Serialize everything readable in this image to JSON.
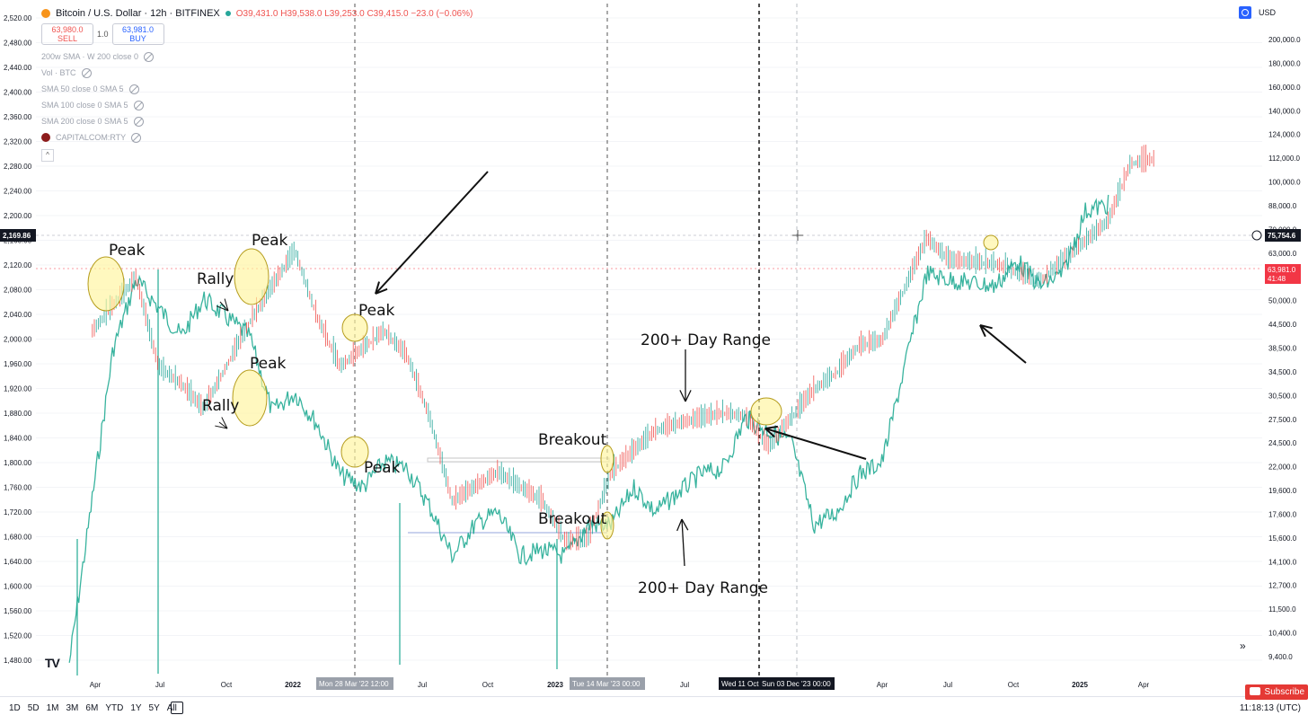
{
  "header": {
    "title": "Bitcoin / U.S. Dollar · 12h · BITFINEX",
    "ohlc": "O39,431.0 H39,538.0 L39,253.0 C39,415.0 −23.0 (−0.06%)",
    "sell_price": "63,980.0",
    "sell_label": "SELL",
    "quantity": "1.0",
    "buy_price": "63,981.0",
    "buy_label": "BUY",
    "currency": "USD"
  },
  "indicators": [
    "200w SMA · W 200 close 0",
    "Vol · BTC",
    "SMA 50 close 0 SMA 5",
    "SMA 100 close 0 SMA 5",
    "SMA 200 close 0 SMA 5",
    "CAPITALCOM:RTY"
  ],
  "range_buttons": [
    "1D",
    "5D",
    "1M",
    "3M",
    "6M",
    "YTD",
    "1Y",
    "5Y",
    "All"
  ],
  "time_readout": "11:18:13 (UTC)",
  "subscribe_label": "Subscribe",
  "colors": {
    "btc_candle_up": "#26a69a",
    "btc_candle_down": "#ef5350",
    "rty_line": "#22ab94",
    "highlight": "#fff59d",
    "price_tag_red": "#f23645",
    "crosshair_tag": "#131722"
  },
  "chart_data": {
    "type": "line",
    "series": [
      {
        "name": "CAPITALCOM:RTY",
        "axis": "left",
        "x": [
          "2021-01",
          "2021-03",
          "2021-04",
          "2021-06",
          "2021-07",
          "2021-09",
          "2021-10",
          "2021-11",
          "2021-12",
          "2022-01",
          "2022-02",
          "2022-03",
          "2022-04",
          "2022-05",
          "2022-06",
          "2022-07",
          "2022-08",
          "2022-09",
          "2022-10",
          "2022-11",
          "2022-12",
          "2023-01",
          "2023-02",
          "2023-03",
          "2023-05",
          "2023-06",
          "2023-07",
          "2023-08",
          "2023-09",
          "2023-10",
          "2023-11",
          "2023-12",
          "2024-01",
          "2024-03",
          "2024-04",
          "2024-06",
          "2024-07",
          "2024-08",
          "2024-09",
          "2024-10",
          "2024-11"
        ],
        "y": [
          1480,
          1980,
          2090,
          2000,
          2060,
          2000,
          1880,
          1910,
          1860,
          1780,
          1760,
          1800,
          1790,
          1730,
          1650,
          1700,
          1720,
          1650,
          1660,
          1650,
          1700,
          1700,
          1760,
          1720,
          1780,
          1790,
          1870,
          1850,
          1830,
          1700,
          1720,
          1780,
          1800,
          2100,
          2090,
          2080,
          2120,
          2080,
          2100,
          2200,
          2210
        ]
      },
      {
        "name": "Bitcoin / U.S. Dollar",
        "axis": "right",
        "x": [
          "2021-02",
          "2021-04",
          "2021-05",
          "2021-06",
          "2021-07",
          "2021-09",
          "2021-11",
          "2021-12",
          "2022-01",
          "2022-03",
          "2022-04",
          "2022-05",
          "2022-06",
          "2022-08",
          "2022-10",
          "2022-11",
          "2022-12",
          "2023-01",
          "2023-03",
          "2023-04",
          "2023-06",
          "2023-07",
          "2023-08",
          "2023-10",
          "2023-11",
          "2023-12",
          "2024-01",
          "2024-03",
          "2024-04",
          "2024-06",
          "2024-08",
          "2024-09",
          "2024-11",
          "2024-12",
          "2025-01"
        ],
        "y": [
          45000,
          58000,
          38000,
          35000,
          31000,
          47000,
          66000,
          48000,
          38000,
          45000,
          40000,
          30000,
          20000,
          23000,
          20000,
          16500,
          16800,
          23000,
          28000,
          29000,
          30500,
          30000,
          26000,
          34000,
          37000,
          42000,
          43000,
          70000,
          63000,
          62000,
          57000,
          63000,
          76000,
          100000,
          102000
        ]
      }
    ],
    "left_axis_ticks": [
      "2,520.00",
      "2,480.00",
      "2,440.00",
      "2,400.00",
      "2,360.00",
      "2,320.00",
      "2,280.00",
      "2,240.00",
      "2,200.00",
      "2,160.00",
      "2,120.00",
      "2,080.00",
      "2,040.00",
      "2,000.00",
      "1,960.00",
      "1,920.00",
      "1,880.00",
      "1,840.00",
      "1,800.00",
      "1,760.00",
      "1,720.00",
      "1,680.00",
      "1,640.00",
      "1,600.00",
      "1,560.00",
      "1,520.00",
      "1,480.00"
    ],
    "right_axis_ticks": [
      "200,000.0",
      "180,000.0",
      "160,000.0",
      "140,000.0",
      "124,000.0",
      "112,000.0",
      "100,000.0",
      "88,000.0",
      "70,000.0",
      "63,000.0",
      "56,500.0",
      "50,000.0",
      "44,500.0",
      "38,500.0",
      "34,500.0",
      "30,500.0",
      "27,500.0",
      "24,500.0",
      "22,000.0",
      "19,600.0",
      "17,600.0",
      "15,600.0",
      "14,100.0",
      "12,700.0",
      "11,500.0",
      "10,400.0",
      "9,400.0"
    ],
    "x_axis_ticks": [
      "Apr",
      "Jul",
      "Oct",
      "2022",
      "Jul",
      "Oct",
      "2023",
      "Jul",
      "Apr",
      "Jul",
      "Oct",
      "2025",
      "Apr"
    ],
    "price_tags": {
      "left_crosshair": "2,169.86",
      "right_crosshair": "75,754.6",
      "right_last": "63,981.0",
      "right_last_countdown": "41:48"
    },
    "date_tags": [
      "Mon 28 Mar '22  12:00",
      "Tue 14 Mar '23  00:00",
      "Wed 11 Oct",
      "Sun 03 Dec '23  00:00"
    ],
    "annotations": [
      "Peak",
      "Rally",
      "Peak",
      "Peak",
      "Rally",
      "Peak",
      "Peak",
      "Breakout",
      "Breakout",
      "200+ Day Range",
      "200+ Day Range"
    ],
    "left_range": [
      1460,
      2530
    ],
    "right_scale": "log"
  }
}
